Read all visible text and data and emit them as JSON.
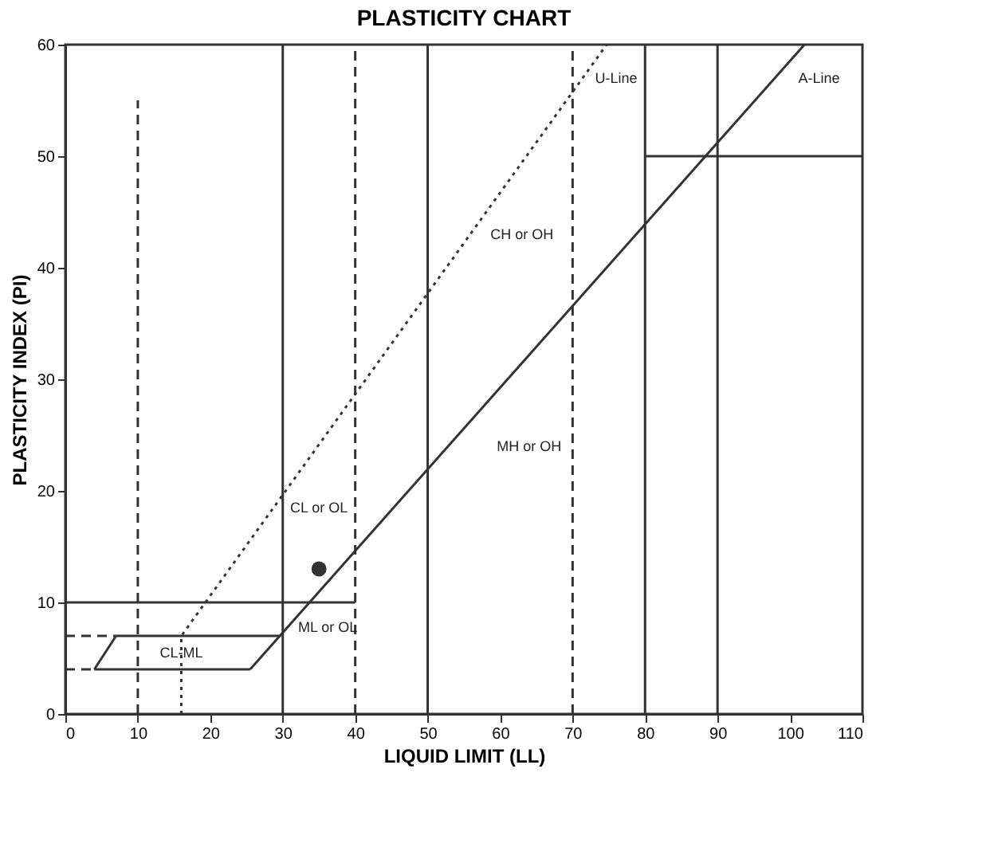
{
  "chart_data": {
    "type": "line",
    "title": "PLASTICITY CHART",
    "xlabel": "LIQUID LIMIT (LL)",
    "ylabel": "PLASTICITY INDEX (PI)",
    "xlim": [
      0,
      110
    ],
    "xticks": [
      0,
      10,
      20,
      30,
      40,
      50,
      60,
      70,
      80,
      90,
      100,
      110
    ],
    "ylim": [
      0,
      60
    ],
    "yticks": [
      0,
      10,
      20,
      30,
      40,
      50,
      60
    ],
    "grid": false,
    "series": [
      {
        "color": "#333333",
        "line_style": "solid",
        "x": [
          25.5,
          102
        ],
        "values": [
          4,
          60
        ]
      },
      {
        "color": "#333333",
        "line_style": "dotted",
        "x": [
          16,
          16,
          74.7
        ],
        "values": [
          0,
          7,
          60
        ]
      },
      {
        "color": "#333333",
        "line_style": "solid",
        "x": [
          4,
          25.5
        ],
        "values": [
          4,
          4
        ]
      },
      {
        "color": "#333333",
        "line_style": "solid",
        "x": [
          7,
          29.6
        ],
        "values": [
          7,
          7
        ]
      },
      {
        "color": "#333333",
        "line_style": "solid",
        "x": [
          4,
          7
        ],
        "values": [
          4,
          7
        ]
      },
      {
        "color": "#333333",
        "line_style": "dashed",
        "x": [
          0,
          4
        ],
        "values": [
          4,
          4
        ]
      },
      {
        "color": "#333333",
        "line_style": "dashed",
        "x": [
          0,
          7
        ],
        "values": [
          7,
          7
        ]
      },
      {
        "color": "#333333",
        "line_style": "solid",
        "x": [
          0,
          40
        ],
        "values": [
          10,
          10
        ]
      },
      {
        "color": "#333333",
        "line_style": "dashed",
        "x": [
          10,
          10
        ],
        "values": [
          0,
          55
        ]
      },
      {
        "color": "#333333",
        "line_style": "dashed",
        "x": [
          40,
          40
        ],
        "values": [
          0,
          60
        ]
      },
      {
        "color": "#333333",
        "line_style": "dashed",
        "x": [
          70,
          70
        ],
        "values": [
          0,
          60
        ]
      },
      {
        "color": "#333333",
        "line_style": "solid",
        "x": [
          80,
          110
        ],
        "values": [
          50,
          50
        ]
      },
      {
        "type": "scatter",
        "marker": "circle",
        "color": "#333333",
        "x": [
          35
        ],
        "values": [
          13
        ]
      }
    ],
    "ref_lines": [
      {
        "axis": "x",
        "value": 30,
        "color": "#333333"
      },
      {
        "axis": "x",
        "value": 50,
        "color": "#333333"
      },
      {
        "axis": "x",
        "value": 80,
        "color": "#333333"
      },
      {
        "axis": "x",
        "value": 90,
        "color": "#333333"
      }
    ],
    "annotations": [
      "U-Line",
      "A-Line",
      "CH or OH",
      "MH or OH",
      "CL or OL",
      "ML or OL",
      "CL-ML"
    ]
  }
}
